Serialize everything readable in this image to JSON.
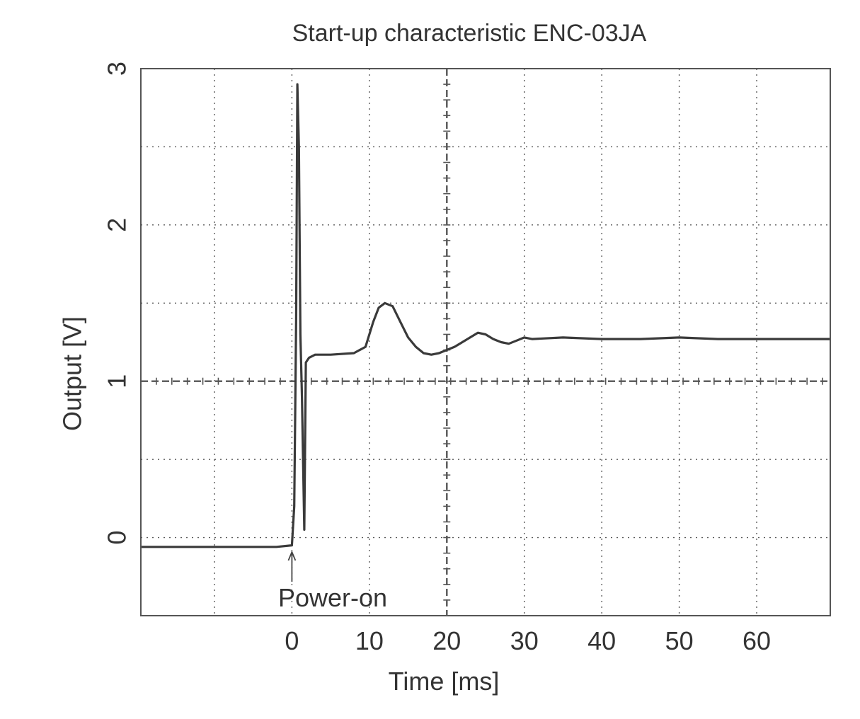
{
  "chart_data": {
    "type": "line",
    "title": "Start-up characteristic ENC-03JA",
    "xlabel": "Time [ms]",
    "ylabel": "Output [V]",
    "xlim": [
      -19.5,
      69.5
    ],
    "ylim": [
      -0.5,
      3
    ],
    "x_ticks": [
      0,
      10,
      20,
      30,
      40,
      50,
      60
    ],
    "y_ticks": [
      0,
      1,
      2,
      3
    ],
    "x_gridlines": [
      -10,
      0,
      10,
      20,
      30,
      40,
      50,
      60
    ],
    "y_gridlines": [
      0,
      0.5,
      1,
      1.5,
      2,
      2.5
    ],
    "grid": true,
    "annotation": {
      "text": "Power-on",
      "x": 0
    },
    "series": [
      {
        "x": [
          -19.5,
          -10,
          -2,
          0,
          0.3,
          0.55,
          0.7,
          0.9,
          1.1,
          1.3,
          1.6,
          1.8,
          2.2,
          3,
          5,
          8,
          9.5,
          10.5,
          11.2,
          12,
          13,
          14,
          15,
          16,
          17,
          18,
          19,
          20,
          21,
          22,
          23,
          24,
          25,
          26,
          27,
          28,
          29,
          30,
          31,
          35,
          40,
          45,
          50,
          55,
          60,
          65,
          69.5
        ],
        "y": [
          -0.06,
          -0.06,
          -0.06,
          -0.05,
          0.2,
          1.4,
          2.9,
          2.5,
          1.3,
          0.9,
          0.05,
          1.12,
          1.15,
          1.17,
          1.17,
          1.18,
          1.22,
          1.38,
          1.47,
          1.5,
          1.48,
          1.38,
          1.28,
          1.22,
          1.18,
          1.17,
          1.18,
          1.2,
          1.22,
          1.25,
          1.28,
          1.31,
          1.3,
          1.27,
          1.25,
          1.24,
          1.26,
          1.28,
          1.27,
          1.28,
          1.27,
          1.27,
          1.28,
          1.27,
          1.27,
          1.27,
          1.27
        ]
      }
    ]
  }
}
